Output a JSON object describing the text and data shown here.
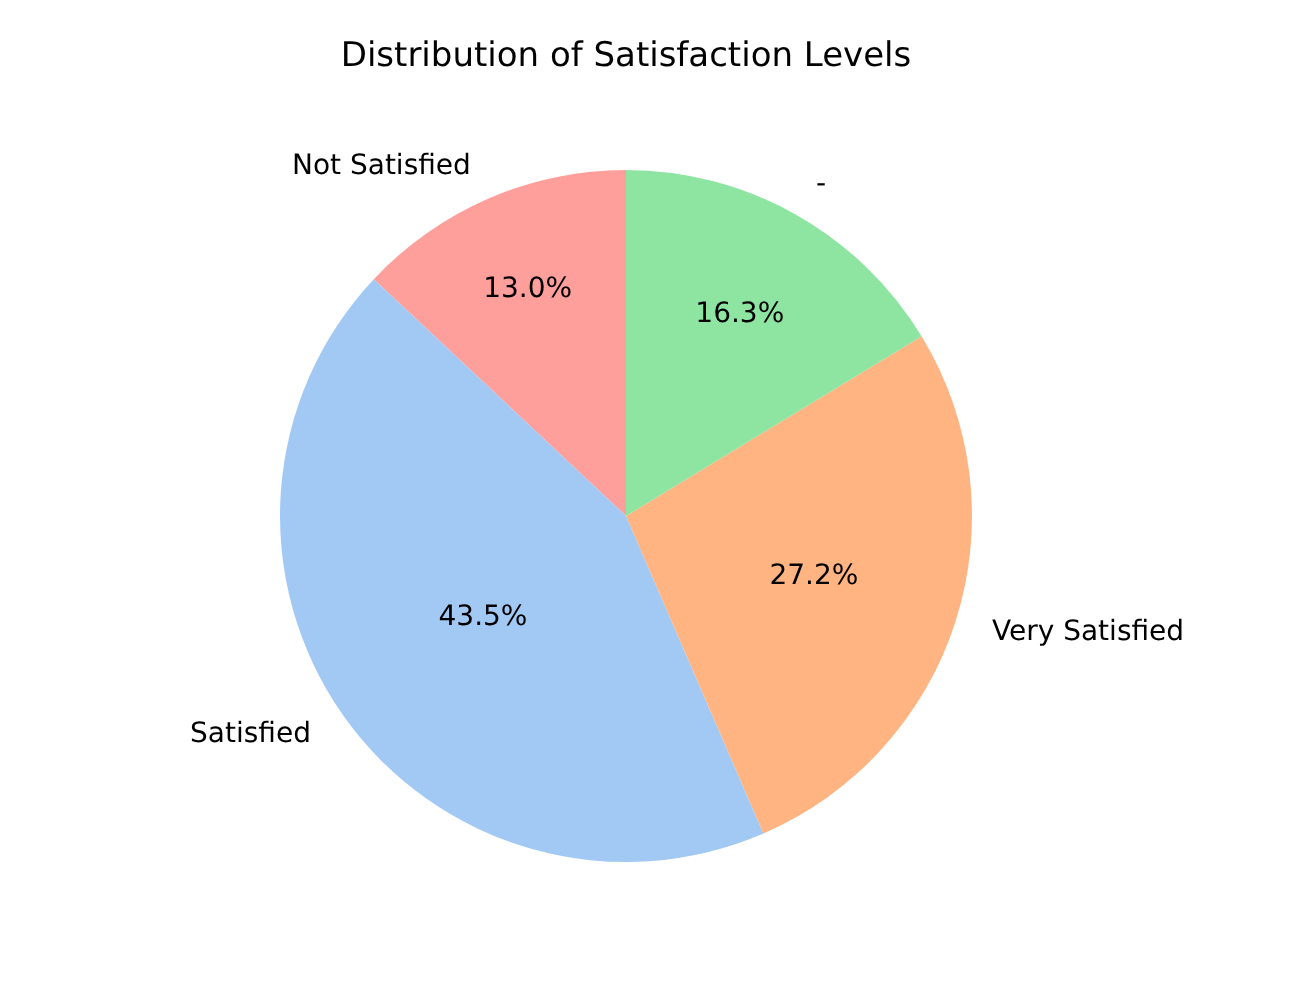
{
  "chart_data": {
    "type": "pie",
    "title": "Distribution of Satisfaction Levels",
    "categories": [
      "Not Satisfied",
      "Satisfied",
      "Very Satisfied",
      "-"
    ],
    "values": [
      13.0,
      43.5,
      27.2,
      16.3
    ],
    "value_labels": [
      "13.0%",
      "43.5%",
      "27.2%",
      "16.3%"
    ],
    "colors": [
      "#ff9f9b",
      "#a1c9f4",
      "#ffb482",
      "#8de5a1"
    ],
    "legend": false
  }
}
